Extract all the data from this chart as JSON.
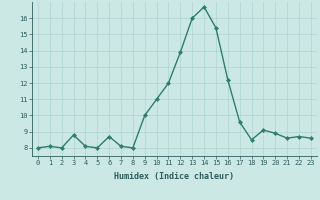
{
  "x": [
    0,
    1,
    2,
    3,
    4,
    5,
    6,
    7,
    8,
    9,
    10,
    11,
    12,
    13,
    14,
    15,
    16,
    17,
    18,
    19,
    20,
    21,
    22,
    23
  ],
  "y": [
    8,
    8.1,
    8,
    8.8,
    8.1,
    8,
    8.7,
    8.1,
    8,
    10,
    11,
    12,
    13.9,
    16,
    16.7,
    15.4,
    12.2,
    9.6,
    8.5,
    9.1,
    8.9,
    8.6,
    8.7,
    8.6
  ],
  "line_color": "#2e7d6e",
  "bg_color": "#cce8e5",
  "grid_color": "#b0d4d0",
  "xlabel": "Humidex (Indice chaleur)",
  "ylabel_ticks": [
    8,
    9,
    10,
    11,
    12,
    13,
    14,
    15,
    16
  ],
  "ylim": [
    7.5,
    17.0
  ],
  "xlim": [
    -0.5,
    23.5
  ],
  "font_color": "#2e5c5c",
  "marker": "D",
  "markersize": 2.0,
  "linewidth": 1.0,
  "tick_fontsize": 5.0,
  "xlabel_fontsize": 6.0
}
